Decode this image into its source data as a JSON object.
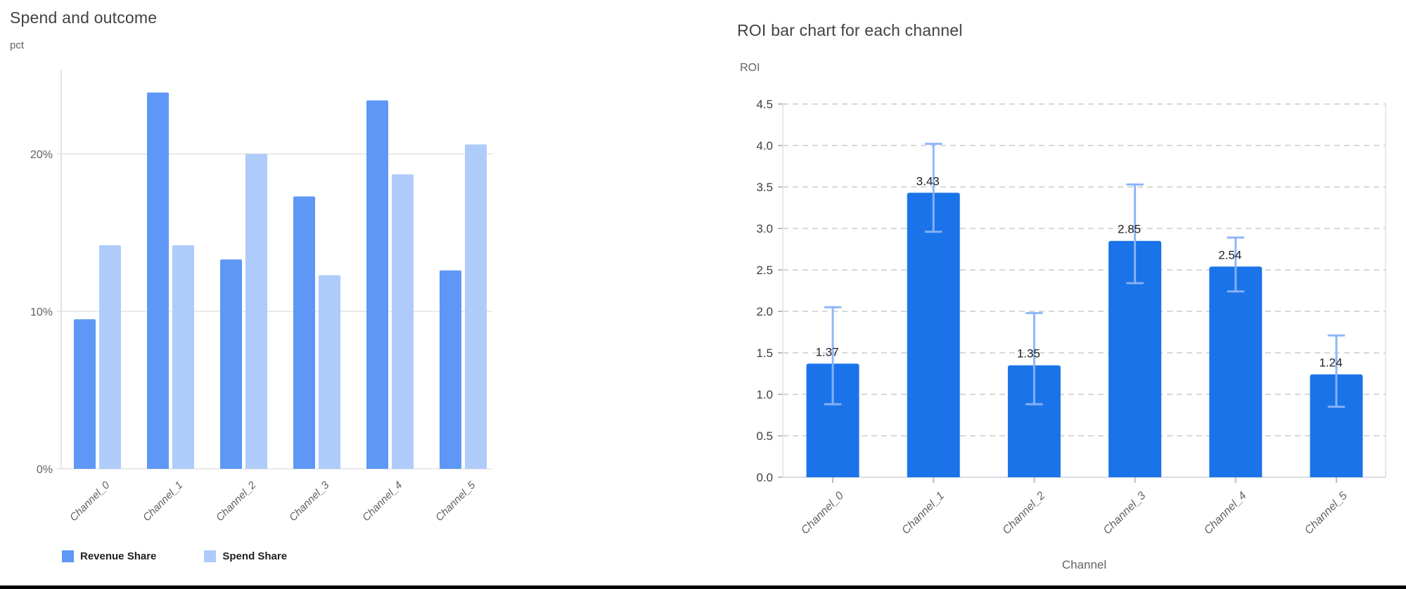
{
  "page": {
    "background": "#ffffff",
    "bottom_bar_color": "#000000"
  },
  "chart_data": [
    {
      "type": "bar",
      "title": "Spend and outcome",
      "ylabel": "pct",
      "xlabel": "",
      "categories": [
        "Channel_0",
        "Channel_1",
        "Channel_2",
        "Channel_3",
        "Channel_4",
        "Channel_5"
      ],
      "series": [
        {
          "name": "Revenue Share",
          "color": "#5E97F6",
          "values": [
            9.5,
            23.9,
            13.3,
            17.3,
            23.4,
            12.6
          ]
        },
        {
          "name": "Spend Share",
          "color": "#AECBFA",
          "values": [
            14.2,
            14.2,
            20.0,
            12.3,
            18.7,
            20.6
          ]
        }
      ],
      "y_ticks": [
        0,
        10,
        20
      ],
      "y_tick_labels": [
        "0%",
        "10%",
        "20%"
      ],
      "ylim": [
        0,
        25.3
      ],
      "grid": "solid-horizontal",
      "legend_position": "bottom",
      "unit": "percent"
    },
    {
      "type": "bar",
      "title": "ROI bar chart for each channel",
      "ylabel": "ROI",
      "xlabel": "Channel",
      "categories": [
        "Channel_0",
        "Channel_1",
        "Channel_2",
        "Channel_3",
        "Channel_4",
        "Channel_5"
      ],
      "values": [
        1.37,
        3.43,
        1.35,
        2.85,
        2.54,
        1.24
      ],
      "value_labels": [
        "1.37",
        "3.43",
        "1.35",
        "2.85",
        "2.54",
        "1.24"
      ],
      "bar_color": "#1A73E8",
      "error_bars": {
        "color": "#8AB4F8",
        "low": [
          0.88,
          2.96,
          0.88,
          2.34,
          2.24,
          0.85
        ],
        "high": [
          2.05,
          4.02,
          1.98,
          3.53,
          2.89,
          1.71
        ]
      },
      "ylim": [
        0,
        4.5
      ],
      "y_tick_step": 0.5,
      "grid": "dashed-horizontal",
      "legend_position": "none"
    }
  ]
}
